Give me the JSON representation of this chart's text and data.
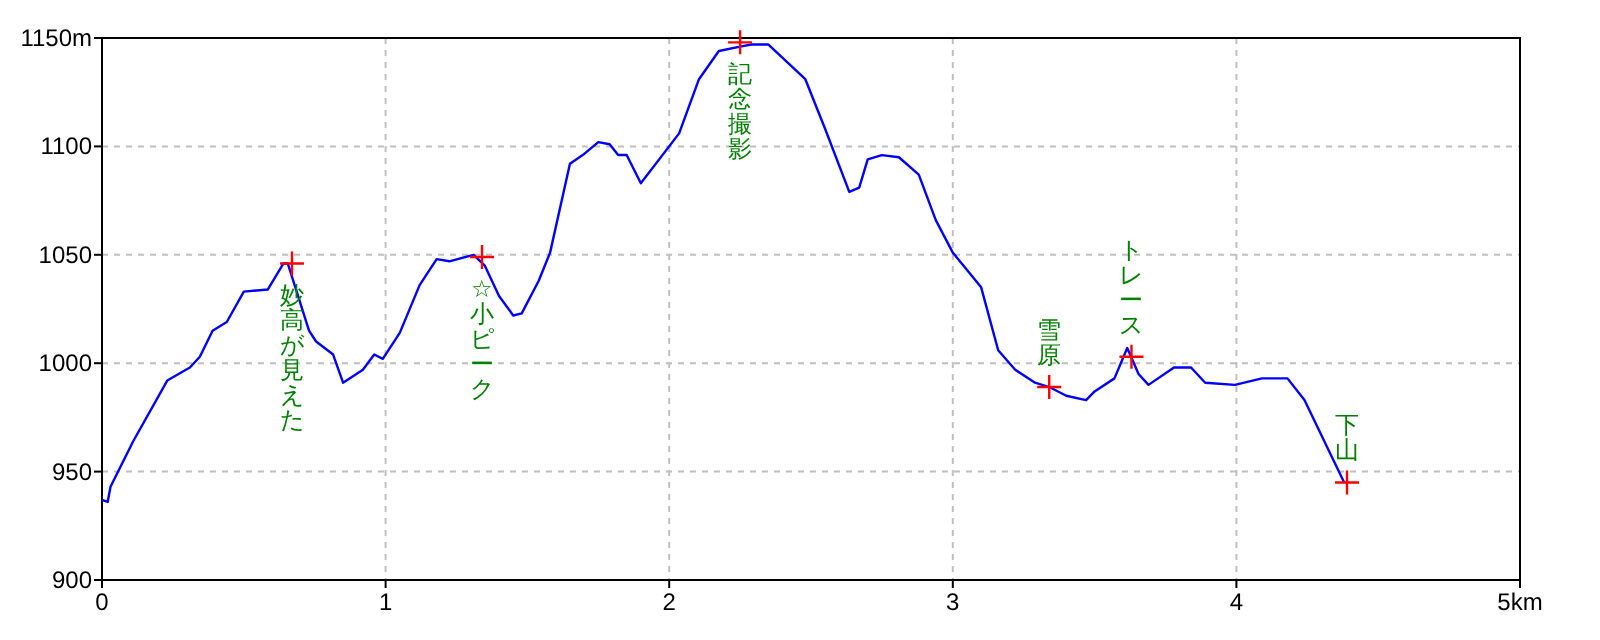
{
  "chart_data": {
    "type": "line",
    "xlim": [
      0,
      5
    ],
    "ylim": [
      900,
      1150
    ],
    "xticks": [
      0,
      1,
      2,
      3,
      4,
      {
        "value": 5,
        "label": "5km"
      }
    ],
    "yticks": [
      900,
      950,
      1000,
      1050,
      1100,
      {
        "value": 1150,
        "label": "1150m"
      }
    ],
    "grid": true,
    "series": [
      {
        "color": "#0000ff",
        "x": [
          0,
          0.02,
          0.03,
          0.11,
          0.23,
          0.31,
          0.345,
          0.39,
          0.44,
          0.5,
          0.585,
          0.64,
          0.655,
          0.73,
          0.755,
          0.815,
          0.85,
          0.92,
          0.96,
          0.99,
          1.05,
          1.12,
          1.18,
          1.225,
          1.31,
          1.35,
          1.4,
          1.45,
          1.48,
          1.54,
          1.58,
          1.65,
          1.695,
          1.75,
          1.79,
          1.82,
          1.85,
          1.9,
          2.035,
          2.105,
          2.175,
          2.25,
          2.29,
          2.35,
          2.48,
          2.55,
          2.635,
          2.67,
          2.7,
          2.75,
          2.81,
          2.88,
          2.94,
          3.0,
          3.1,
          3.16,
          3.22,
          3.29,
          3.34,
          3.4,
          3.47,
          3.5,
          3.57,
          3.615,
          3.655,
          3.69,
          3.78,
          3.84,
          3.89,
          3.995,
          4.09,
          4.18,
          4.24,
          4.38
        ],
        "values": [
          937,
          936,
          943,
          964,
          992,
          998,
          1003,
          1015,
          1019,
          1033,
          1034,
          1046,
          1046,
          1015,
          1010,
          1004,
          991,
          997,
          1004,
          1002,
          1014,
          1036,
          1048,
          1047,
          1050,
          1045,
          1031,
          1022,
          1023,
          1038,
          1051,
          1092,
          1096,
          1102,
          1101,
          1096,
          1096,
          1083,
          1106,
          1131,
          1144,
          1146,
          1147,
          1147,
          1131,
          1108,
          1079,
          1081,
          1094,
          1096,
          1095,
          1087,
          1066,
          1051,
          1035,
          1006,
          997,
          991,
          989,
          985,
          983,
          987,
          993,
          1007,
          995,
          990,
          998,
          998,
          991,
          990,
          993,
          993,
          983,
          945
        ]
      },
      {
        "type": "scatter",
        "marker": "cross",
        "color": "#ff0000",
        "x": [
          0.67,
          1.34,
          2.25,
          3.34,
          3.63,
          4.39
        ],
        "values": [
          1046,
          1049,
          1148,
          989,
          1003,
          945
        ]
      }
    ],
    "annotations": [
      {
        "text": "妙高が見えた",
        "x": 0.67,
        "y": 1046
      },
      {
        "text": "☆小ピーク",
        "x": 1.34,
        "y": 1049
      },
      {
        "text": "記念撮影",
        "x": 2.25,
        "y": 1148
      },
      {
        "text": "雪原",
        "x": 3.34,
        "y": 989
      },
      {
        "text": "トレース",
        "x": 3.63,
        "y": 1003
      },
      {
        "text": "下山",
        "x": 4.39,
        "y": 945
      }
    ]
  }
}
